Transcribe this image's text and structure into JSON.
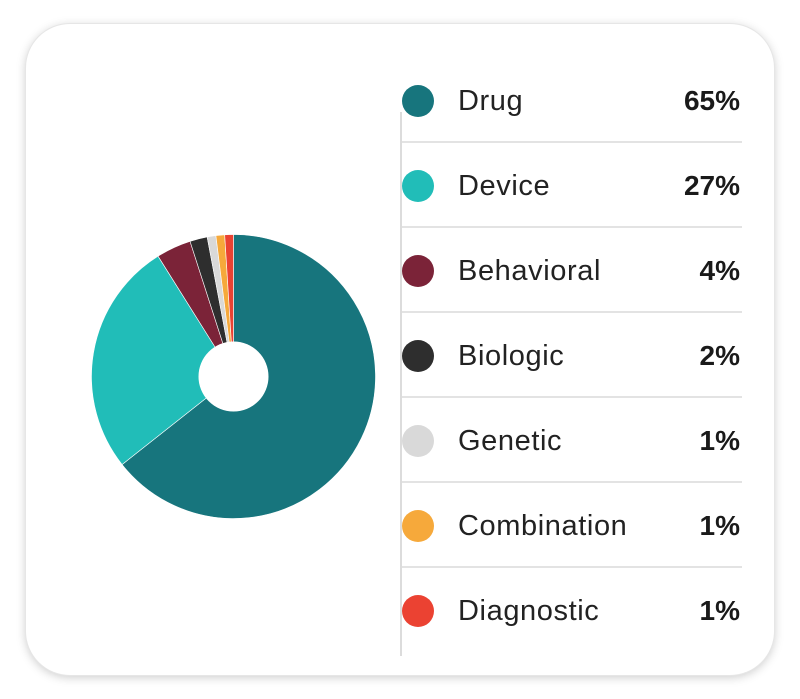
{
  "chart_data": {
    "type": "pie",
    "categories": [
      "Drug",
      "Device",
      "Behavioral",
      "Biologic",
      "Genetic",
      "Combination",
      "Diagnostic"
    ],
    "values": [
      65,
      27,
      4,
      2,
      1,
      1,
      1
    ],
    "value_labels": [
      "65%",
      "27%",
      "4%",
      "2%",
      "1%",
      "1%",
      "1%"
    ],
    "colors": [
      "#17757d",
      "#21bdb8",
      "#7b2338",
      "#2e2e2e",
      "#d9d9d9",
      "#f6a93b",
      "#eb4232"
    ],
    "donut_hole": true,
    "legend_position": "right",
    "title": ""
  }
}
